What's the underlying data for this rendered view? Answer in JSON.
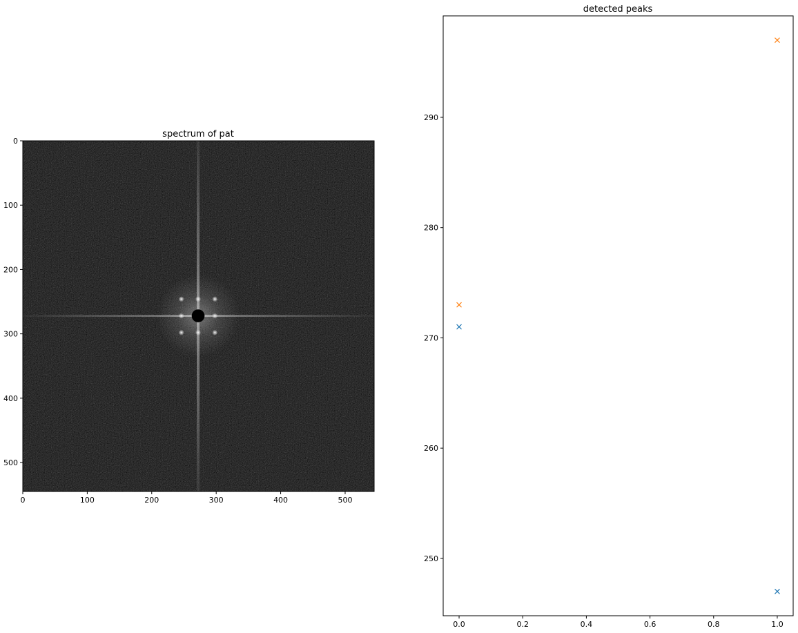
{
  "figure": {
    "background": "#ffffff"
  },
  "chart_data": [
    {
      "type": "heatmap",
      "title": "spectrum of pat",
      "description": "2D Fourier magnitude spectrum shown in grayscale; dark background with a masked black disc at the center, a faint vertical and horizontal streak through the center, and a square lattice of bright peaks around the center.",
      "colormap": "gray",
      "image_size": [
        545,
        545
      ],
      "xlim": [
        0,
        545
      ],
      "ylim": [
        545,
        0
      ],
      "y_inverted": true,
      "xticks": [
        0,
        100,
        200,
        300,
        400,
        500
      ],
      "yticks": [
        0,
        100,
        200,
        300,
        400,
        500
      ],
      "center": [
        272,
        272
      ],
      "masked_center_radius": 10,
      "bright_peaks": [
        [
          246,
          246
        ],
        [
          272,
          246
        ],
        [
          298,
          246
        ],
        [
          246,
          272
        ],
        [
          298,
          272
        ],
        [
          246,
          298
        ],
        [
          272,
          298
        ],
        [
          298,
          298
        ]
      ],
      "grid": false
    },
    {
      "type": "scatter",
      "title": "detected peaks",
      "marker": "x",
      "xlim": [
        -0.05,
        1.05
      ],
      "ylim": [
        244.8,
        299.2
      ],
      "xticks": [
        0.0,
        0.2,
        0.4,
        0.6,
        0.8,
        1.0
      ],
      "xtick_labels": [
        "0.0",
        "0.2",
        "0.4",
        "0.6",
        "0.8",
        "1.0"
      ],
      "yticks": [
        250,
        260,
        270,
        280,
        290
      ],
      "series": [
        {
          "color": "#1f77b4",
          "x": [
            0,
            1
          ],
          "y": [
            271,
            247
          ]
        },
        {
          "color": "#ff7f0e",
          "x": [
            0,
            1
          ],
          "y": [
            273,
            297
          ]
        }
      ],
      "grid": false
    }
  ]
}
